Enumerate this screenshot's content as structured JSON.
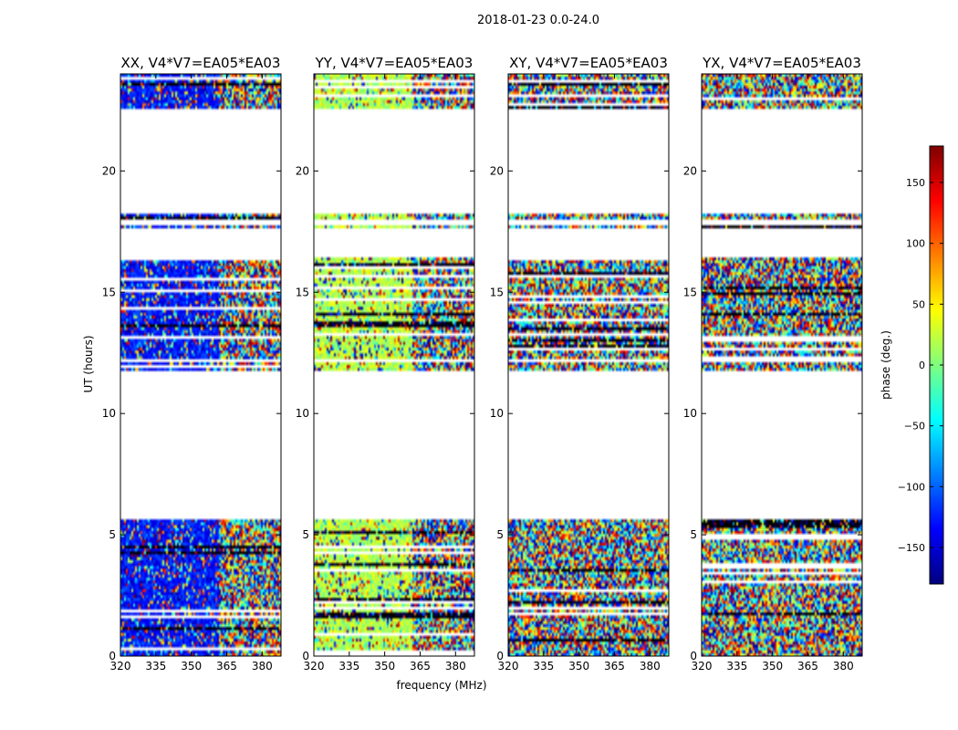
{
  "figure": {
    "suptitle": "2018-01-23 0.0-24.0",
    "xlabel": "frequency (MHz)",
    "ylabel": "UT (hours)"
  },
  "chart_data": {
    "type": "heatmap",
    "title": "2018-01-23 0.0-24.0",
    "xlabel": "frequency (MHz)",
    "ylabel": "UT (hours)",
    "xlim": [
      320,
      388
    ],
    "ylim": [
      0,
      24
    ],
    "xticks": [
      320,
      335,
      350,
      365,
      380
    ],
    "yticks": [
      0,
      5,
      10,
      15,
      20
    ],
    "grid": false,
    "panels": [
      {
        "title": "XX, V4*V7=EA05*EA03",
        "dominant": "coherent blue (about -130 deg) below 362 MHz, noisy above"
      },
      {
        "title": "YY, V4*V7=EA05*EA03",
        "dominant": "coherent green-yellow (about 0 to 60 deg) below 362 MHz, noisy above"
      },
      {
        "title": "XY, V4*V7=EA05*EA03",
        "dominant": "random phase noise"
      },
      {
        "title": "YX, V4*V7=EA05*EA03",
        "dominant": "random phase noise"
      }
    ],
    "data_time_ranges_hours": [
      [
        0.0,
        5.6
      ],
      [
        11.8,
        12.1
      ],
      [
        12.2,
        13.7
      ],
      [
        13.7,
        16.4
      ],
      [
        17.7,
        17.8
      ],
      [
        18.0,
        18.2
      ],
      [
        22.6,
        24.0
      ]
    ],
    "colorbar": {
      "label": "phase (deg.)",
      "range": [
        -180,
        180
      ],
      "ticks": [
        -150,
        -100,
        -50,
        0,
        50,
        100,
        150
      ],
      "tick_labels": [
        "−150",
        "−100",
        "−50",
        "0",
        "50",
        "100",
        "150"
      ],
      "colormap": "jet"
    }
  }
}
